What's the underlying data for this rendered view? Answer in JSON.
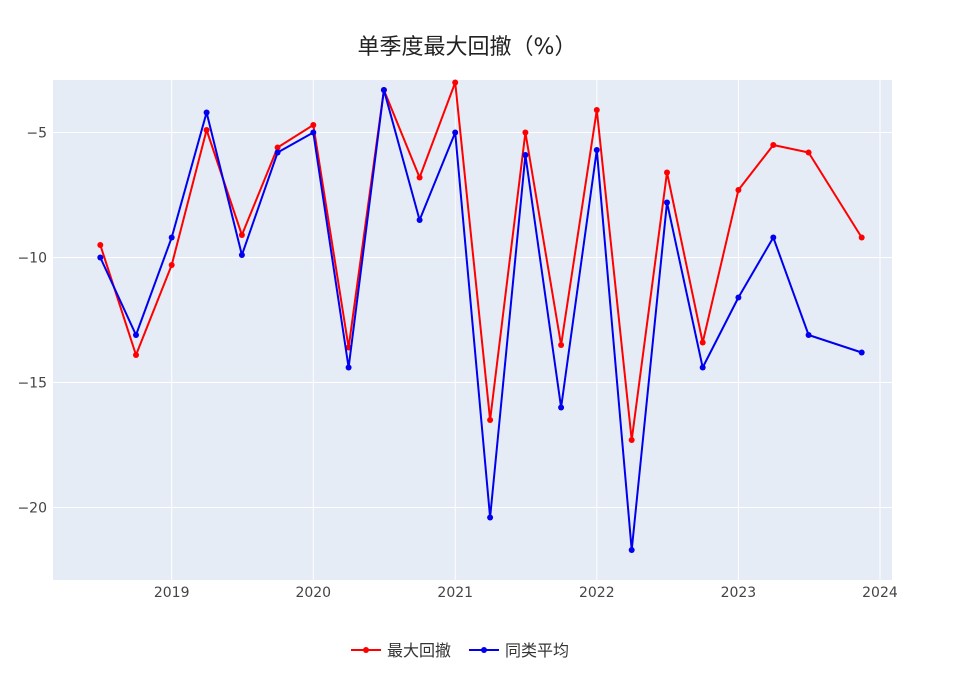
{
  "chart_data": {
    "type": "line",
    "title": "单季度最大回撤（%）",
    "xlabel": "",
    "ylabel": "",
    "grid": true,
    "legend_position": "bottom-center",
    "x": [
      "2018-07-01",
      "2018-10-01",
      "2019-01-01",
      "2019-04-01",
      "2019-07-01",
      "2019-10-01",
      "2020-01-01",
      "2020-04-01",
      "2020-07-01",
      "2020-10-01",
      "2021-01-01",
      "2021-04-01",
      "2021-07-01",
      "2021-10-01",
      "2022-01-01",
      "2022-04-01",
      "2022-07-01",
      "2022-10-01",
      "2023-01-01",
      "2023-04-01",
      "2023-07-01",
      "2023-11-15"
    ],
    "series": [
      {
        "name": "最大回撤",
        "color": "#ff0000",
        "values": [
          -9.5,
          -13.9,
          -10.3,
          -4.9,
          -9.1,
          -5.6,
          -4.7,
          -13.6,
          -3.3,
          -6.8,
          -3.0,
          -16.5,
          -5.0,
          -13.5,
          -4.1,
          -17.3,
          -6.6,
          -13.4,
          -7.3,
          -5.5,
          -5.8,
          -9.2
        ]
      },
      {
        "name": "同类平均",
        "color": "#0000ee",
        "values": [
          -10.0,
          -13.1,
          -9.2,
          -4.2,
          -9.9,
          -5.8,
          -5.0,
          -14.4,
          -3.3,
          -8.5,
          -5.0,
          -20.4,
          -5.9,
          -16.0,
          -5.7,
          -21.7,
          -7.8,
          -14.4,
          -11.6,
          -9.2,
          -13.1,
          -13.8
        ]
      }
    ],
    "xlim": [
      "2018-03-01",
      "2024-02-01"
    ],
    "ylim": [
      -22.9,
      -2.9
    ],
    "x_ticks": [
      {
        "value": "2019-01-01",
        "label": "2019"
      },
      {
        "value": "2020-01-01",
        "label": "2020"
      },
      {
        "value": "2021-01-01",
        "label": "2021"
      },
      {
        "value": "2022-01-01",
        "label": "2022"
      },
      {
        "value": "2023-01-01",
        "label": "2023"
      },
      {
        "value": "2024-01-01",
        "label": "2024"
      }
    ],
    "y_ticks": [
      {
        "value": -5,
        "label": "−5"
      },
      {
        "value": -10,
        "label": "−10"
      },
      {
        "value": -15,
        "label": "−15"
      },
      {
        "value": -20,
        "label": "−20"
      }
    ],
    "colors": {
      "plot_bg": "#e5ecf6",
      "grid": "#ffffff"
    }
  }
}
